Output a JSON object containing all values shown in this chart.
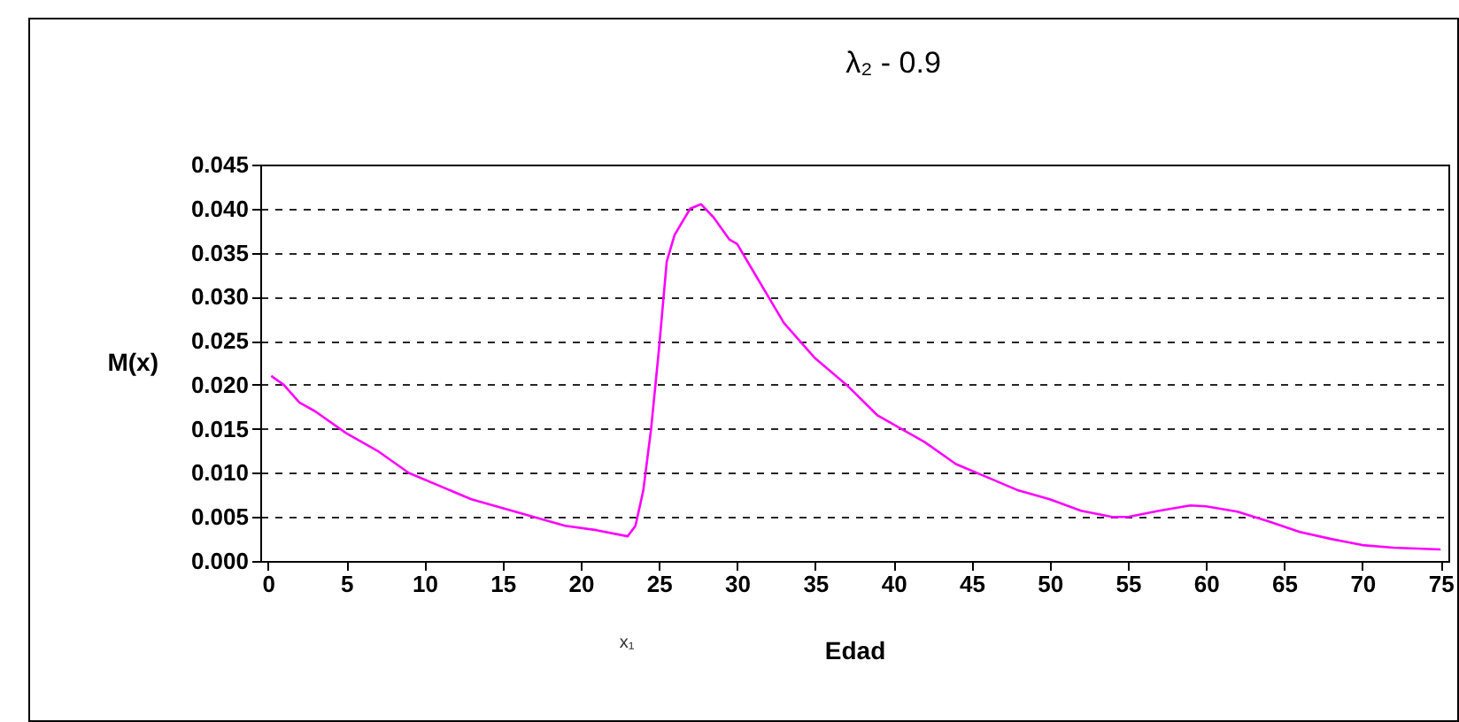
{
  "chart_data": {
    "type": "line",
    "title": "λ₂ - 0.9",
    "xlabel": "Edad",
    "ylabel": "M(x)",
    "annotations": [
      "x₁"
    ],
    "x": [
      0.2,
      1,
      2,
      3,
      5,
      7,
      9,
      11,
      13,
      15,
      17,
      19,
      21,
      23,
      23.5,
      24,
      24.5,
      25,
      25.5,
      26,
      27,
      27.7,
      28.5,
      29.5,
      30,
      31,
      32,
      33,
      34,
      35,
      37,
      39,
      40,
      42,
      44,
      46,
      48,
      50,
      52,
      54,
      55,
      57,
      59,
      60,
      62,
      64,
      66,
      68,
      70,
      72,
      75
    ],
    "series": [
      {
        "color": "#ff00ff",
        "values": [
          0.021,
          0.02,
          0.018,
          0.017,
          0.0145,
          0.0125,
          0.01,
          0.0085,
          0.007,
          0.006,
          0.005,
          0.004,
          0.0035,
          0.0028,
          0.004,
          0.008,
          0.015,
          0.024,
          0.034,
          0.037,
          0.04,
          0.0405,
          0.039,
          0.0365,
          0.036,
          0.033,
          0.03,
          0.027,
          0.025,
          0.023,
          0.02,
          0.0165,
          0.0155,
          0.0135,
          0.011,
          0.0095,
          0.008,
          0.007,
          0.0057,
          0.005,
          0.005,
          0.0057,
          0.0063,
          0.0062,
          0.0056,
          0.0045,
          0.0033,
          0.0025,
          0.0018,
          0.0015,
          0.0013
        ]
      }
    ],
    "xlim": [
      -0.5,
      75.5
    ],
    "xticks": [
      0,
      5,
      10,
      15,
      20,
      25,
      30,
      35,
      40,
      45,
      50,
      55,
      60,
      65,
      70,
      75
    ],
    "ylim": [
      0,
      0.045
    ],
    "yticks": [
      {
        "value": 0,
        "label": "0.000"
      },
      {
        "value": 0.005,
        "label": "0.005"
      },
      {
        "value": 0.01,
        "label": "0.010"
      },
      {
        "value": 0.015,
        "label": "0.015"
      },
      {
        "value": 0.02,
        "label": "0.020"
      },
      {
        "value": 0.025,
        "label": "0.025"
      },
      {
        "value": 0.03,
        "label": "0.030"
      },
      {
        "value": 0.035,
        "label": "0.035"
      },
      {
        "value": 0.04,
        "label": "0.040"
      },
      {
        "value": 0.045,
        "label": "0.045"
      }
    ],
    "grid": "y",
    "line_style": "solid"
  }
}
